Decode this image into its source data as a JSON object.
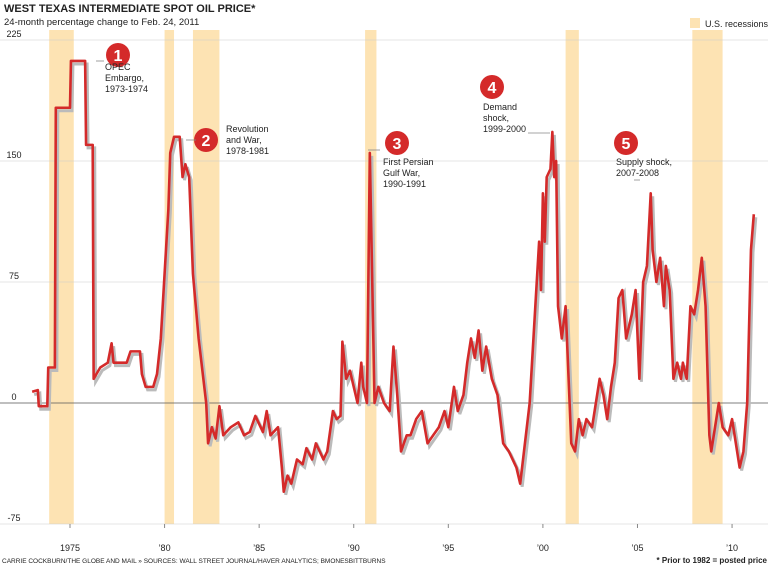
{
  "chart_data": {
    "type": "line",
    "title": "WEST TEXAS INTERMEDIATE SPOT OIL PRICE*",
    "subtitle": "24-month percentage change to Feb. 24, 2011",
    "legend_label": "U.S. recessions",
    "recession_color": "#fde3b3",
    "recessions": [
      [
        1973.9,
        1975.2
      ],
      [
        1980.0,
        1980.5
      ],
      [
        1981.5,
        1982.9
      ],
      [
        1990.6,
        1991.2
      ],
      [
        2001.2,
        2001.9
      ],
      [
        2007.9,
        2009.5
      ]
    ],
    "x": [
      1973.0,
      1973.3,
      1973.35,
      1973.8,
      1973.85,
      1974.2,
      1974.25,
      1975.0,
      1975.05,
      1975.8,
      1975.85,
      1976.2,
      1976.25,
      1976.6,
      1977.0,
      1977.2,
      1977.3,
      1978.0,
      1978.2,
      1978.7,
      1978.8,
      1979.0,
      1979.4,
      1979.6,
      1979.8,
      1980.0,
      1980.2,
      1980.3,
      1980.5,
      1980.8,
      1980.95,
      1981.1,
      1981.3,
      1981.5,
      1981.8,
      1982.0,
      1982.2,
      1982.3,
      1982.5,
      1982.7,
      1982.9,
      1983.1,
      1983.5,
      1983.9,
      1984.2,
      1984.5,
      1984.8,
      1985.2,
      1985.4,
      1985.6,
      1986.0,
      1986.2,
      1986.3,
      1986.5,
      1986.7,
      1987.0,
      1987.3,
      1987.5,
      1987.8,
      1988.0,
      1988.4,
      1988.6,
      1988.9,
      1989.1,
      1989.3,
      1989.4,
      1989.6,
      1989.8,
      1990.0,
      1990.2,
      1990.4,
      1990.5,
      1990.7,
      1990.85,
      1991.1,
      1991.3,
      1991.6,
      1991.9,
      1992.1,
      1992.3,
      1992.5,
      1992.8,
      1993.0,
      1993.3,
      1993.6,
      1993.9,
      1994.2,
      1994.5,
      1994.8,
      1995.0,
      1995.3,
      1995.5,
      1995.8,
      1996.0,
      1996.2,
      1996.4,
      1996.6,
      1996.8,
      1997.0,
      1997.3,
      1997.6,
      1997.9,
      1998.2,
      1998.6,
      1998.8,
      1999.0,
      1999.3,
      1999.6,
      1999.8,
      1999.9,
      2000.0,
      2000.1,
      2000.2,
      2000.4,
      2000.5,
      2000.6,
      2000.7,
      2000.8,
      2001.0,
      2001.2,
      2001.5,
      2001.7,
      2001.9,
      2002.1,
      2002.3,
      2002.6,
      2003.0,
      2003.2,
      2003.4,
      2003.6,
      2003.8,
      2004.0,
      2004.2,
      2004.4,
      2004.7,
      2004.9,
      2005.1,
      2005.3,
      2005.5,
      2005.7,
      2005.8,
      2006.0,
      2006.2,
      2006.4,
      2006.5,
      2006.7,
      2006.9,
      2007.1,
      2007.3,
      2007.4,
      2007.6,
      2007.8,
      2008.0,
      2008.2,
      2008.4,
      2008.6,
      2008.8,
      2008.9,
      2009.1,
      2009.3,
      2009.5,
      2009.8,
      2010.0,
      2010.2,
      2010.4,
      2010.6,
      2010.8,
      2011.0,
      2011.15
    ],
    "series": [
      {
        "color": "#d42a2a",
        "values": [
          7,
          8,
          -2,
          -2,
          22,
          22,
          183,
          183,
          212,
          212,
          160,
          160,
          15,
          22,
          25,
          37,
          25,
          25,
          32,
          32,
          18,
          10,
          10,
          18,
          40,
          80,
          120,
          155,
          165,
          165,
          140,
          148,
          140,
          80,
          40,
          20,
          0,
          -25,
          -15,
          -22,
          -2,
          -20,
          -15,
          -12,
          -20,
          -18,
          -8,
          -18,
          -5,
          -20,
          -15,
          -40,
          -55,
          -45,
          -50,
          -35,
          -38,
          -28,
          -35,
          -25,
          -35,
          -30,
          -5,
          -10,
          -8,
          38,
          15,
          20,
          10,
          0,
          25,
          10,
          0,
          155,
          0,
          10,
          0,
          -5,
          35,
          5,
          -30,
          -20,
          -20,
          -10,
          -5,
          -25,
          -20,
          -15,
          -5,
          -15,
          10,
          -5,
          5,
          25,
          40,
          28,
          45,
          20,
          35,
          15,
          5,
          -25,
          -30,
          -40,
          -50,
          -30,
          0,
          60,
          100,
          70,
          130,
          100,
          140,
          145,
          168,
          140,
          150,
          60,
          40,
          60,
          -25,
          -30,
          -10,
          -20,
          -10,
          -15,
          15,
          5,
          -10,
          10,
          25,
          65,
          70,
          40,
          55,
          70,
          15,
          75,
          85,
          130,
          95,
          75,
          90,
          60,
          85,
          70,
          15,
          25,
          15,
          25,
          15,
          60,
          55,
          70,
          90,
          60,
          -20,
          -30,
          -15,
          0,
          -15,
          -20,
          -10,
          -25,
          -40,
          -30,
          0,
          95,
          117
        ]
      }
    ],
    "xlim": [
      1971.3,
      2011.9
    ],
    "xticks": [
      {
        "value": 1975,
        "label": "1975"
      },
      {
        "value": 1980,
        "label": "’80"
      },
      {
        "value": 1985,
        "label": "’85"
      },
      {
        "value": 1990,
        "label": "’90"
      },
      {
        "value": 1995,
        "label": "’95"
      },
      {
        "value": 2000,
        "label": "’00"
      },
      {
        "value": 2005,
        "label": "’05"
      },
      {
        "value": 2010,
        "label": "’10"
      }
    ],
    "ylim": [
      -75,
      225
    ],
    "yticks": [
      -75,
      0,
      75,
      150,
      225
    ],
    "grid": true,
    "annotations": [
      {
        "number": 1,
        "lines": [
          "OPEC",
          "Embargo,",
          "1973-1974"
        ]
      },
      {
        "number": 2,
        "lines": [
          "Revolution",
          "and War,",
          "1978-1981"
        ]
      },
      {
        "number": 3,
        "lines": [
          "First Persian",
          "Gulf War,",
          "1990-1991"
        ]
      },
      {
        "number": 4,
        "lines": [
          "Demand",
          "shock,",
          "1999-2000"
        ]
      },
      {
        "number": 5,
        "lines": [
          "Supply shock,",
          "2007-2008"
        ]
      }
    ],
    "source": "CARRIE COCKBURN/THE GLOBE AND MAIL » SOURCES: WALL STREET JOURNAL/HAVER ANALYTICS; BMONESBITTBURNS",
    "footnote": "* Prior to 1982 = posted price"
  }
}
